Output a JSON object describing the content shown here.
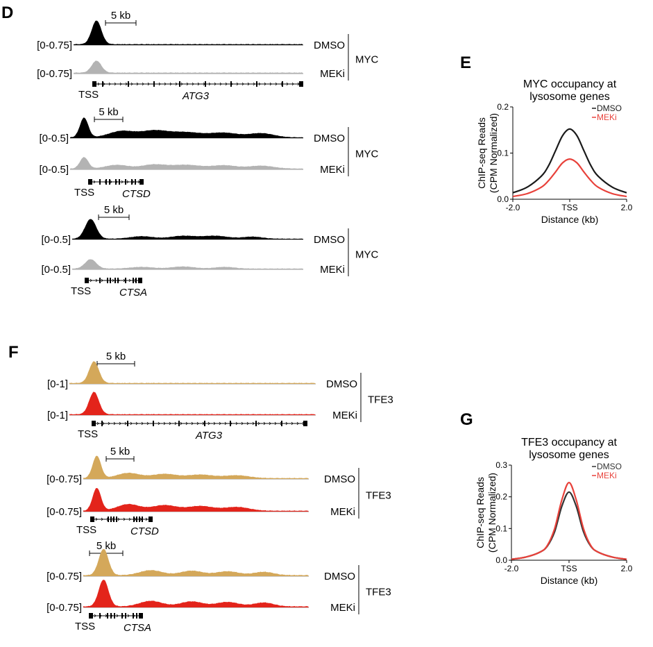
{
  "panels": {
    "D": {
      "letter": "D",
      "factor": "MYC",
      "color_dmso": "#000000",
      "color_meki": "#b3b3b3",
      "groups": [
        {
          "gene": "ATG3",
          "range": "[0-0.75]",
          "scale": "5 kb",
          "cond_top": "DMSO",
          "cond_bottom": "MEKi",
          "tss": "TSS",
          "factor": "MYC",
          "dmso_peaks": [
            [
              0.1,
              0.95,
              7
            ]
          ],
          "meki_peaks": [
            [
              0.1,
              0.48,
              7
            ]
          ]
        },
        {
          "gene": "CTSD",
          "range": "[0-0.5]",
          "scale": "5 kb",
          "cond_top": "DMSO",
          "cond_bottom": "MEKi",
          "tss": "TSS",
          "factor": "MYC",
          "dmso_peaks": [
            [
              0.06,
              0.95,
              6
            ],
            [
              0.22,
              0.3,
              18
            ],
            [
              0.36,
              0.32,
              20
            ],
            [
              0.5,
              0.24,
              22
            ],
            [
              0.66,
              0.22,
              20
            ],
            [
              0.82,
              0.2,
              18
            ]
          ],
          "meki_peaks": [
            [
              0.06,
              0.55,
              6
            ],
            [
              0.2,
              0.18,
              16
            ],
            [
              0.36,
              0.2,
              18
            ],
            [
              0.5,
              0.18,
              20
            ],
            [
              0.66,
              0.16,
              18
            ],
            [
              0.82,
              0.14,
              18
            ]
          ]
        },
        {
          "gene": "CTSA",
          "range": "[0-0.5]",
          "scale": "5 kb",
          "cond_top": "DMSO",
          "cond_bottom": "MEKi",
          "tss": "TSS",
          "factor": "MYC",
          "dmso_peaks": [
            [
              0.08,
              0.95,
              8
            ],
            [
              0.3,
              0.12,
              16
            ],
            [
              0.48,
              0.14,
              18
            ],
            [
              0.62,
              0.14,
              18
            ],
            [
              0.78,
              0.1,
              14
            ]
          ],
          "meki_peaks": [
            [
              0.08,
              0.45,
              8
            ],
            [
              0.3,
              0.08,
              16
            ],
            [
              0.48,
              0.1,
              16
            ],
            [
              0.66,
              0.08,
              14
            ]
          ]
        }
      ]
    },
    "F": {
      "letter": "F",
      "factor": "TFE3",
      "color_dmso": "#d4a85a",
      "color_meki": "#e3241b",
      "groups": [
        {
          "gene": "ATG3",
          "range": "[0-1]",
          "scale": "5 kb",
          "cond_top": "DMSO",
          "cond_bottom": "MEKi",
          "tss": "TSS",
          "factor": "TFE3",
          "dmso_peaks": [
            [
              0.1,
              0.92,
              7
            ]
          ],
          "meki_peaks": [
            [
              0.1,
              0.95,
              7
            ]
          ]
        },
        {
          "gene": "CTSD",
          "range": "[0-0.75]",
          "scale": "5 kb",
          "cond_top": "DMSO",
          "cond_bottom": "MEKi",
          "tss": "TSS",
          "factor": "TFE3",
          "dmso_peaks": [
            [
              0.06,
              0.95,
              6
            ],
            [
              0.2,
              0.22,
              16
            ],
            [
              0.36,
              0.18,
              18
            ],
            [
              0.52,
              0.15,
              18
            ],
            [
              0.68,
              0.12,
              18
            ]
          ],
          "meki_peaks": [
            [
              0.06,
              0.97,
              6
            ],
            [
              0.2,
              0.28,
              16
            ],
            [
              0.36,
              0.24,
              18
            ],
            [
              0.52,
              0.2,
              18
            ],
            [
              0.68,
              0.16,
              18
            ]
          ]
        },
        {
          "gene": "CTSA",
          "range": "[0-0.75]",
          "scale": "5 kb",
          "cond_top": "DMSO",
          "cond_bottom": "MEKi",
          "tss": "TSS",
          "factor": "TFE3",
          "dmso_peaks": [
            [
              0.09,
              0.95,
              7
            ],
            [
              0.3,
              0.18,
              16
            ],
            [
              0.48,
              0.16,
              16
            ],
            [
              0.64,
              0.14,
              16
            ],
            [
              0.8,
              0.12,
              14
            ]
          ],
          "meki_peaks": [
            [
              0.09,
              0.97,
              7
            ],
            [
              0.3,
              0.2,
              16
            ],
            [
              0.48,
              0.18,
              16
            ],
            [
              0.64,
              0.16,
              16
            ],
            [
              0.8,
              0.14,
              14
            ]
          ]
        }
      ]
    },
    "E": {
      "letter": "E"
    },
    "G": {
      "letter": "G"
    }
  },
  "chart_data": [
    {
      "type": "line",
      "panel": "E",
      "title": "MYC occupancy at lysosome genes",
      "title_lines": [
        "MYC occupancy at",
        "lysosome genes"
      ],
      "xlabel": "Distance (kb)",
      "ylabel": "ChIP-seq Reads (CPM Normalized)",
      "ylabel_lines": [
        "ChIP-seq Reads",
        "(CPM Normalized)"
      ],
      "x": [
        -2.0,
        -1.5,
        -1.0,
        -0.75,
        -0.5,
        -0.25,
        0.0,
        0.25,
        0.5,
        0.75,
        1.0,
        1.5,
        2.0
      ],
      "xlim": [
        -2.0,
        2.0
      ],
      "ylim": [
        0,
        0.2
      ],
      "x_ticks": [
        {
          "v": -2.0,
          "label": "-2.0"
        },
        {
          "v": 0.0,
          "label": "TSS"
        },
        {
          "v": 2.0,
          "label": "2.0"
        }
      ],
      "y_ticks": [
        {
          "v": 0.0,
          "label": "0.0"
        },
        {
          "v": 0.1,
          "label": "0.1"
        },
        {
          "v": 0.2,
          "label": "0.2"
        }
      ],
      "legend_position": "top-right",
      "series": [
        {
          "name": "DMSO",
          "color": "#1a1a1a",
          "values": [
            0.014,
            0.026,
            0.05,
            0.072,
            0.105,
            0.138,
            0.152,
            0.138,
            0.105,
            0.072,
            0.05,
            0.026,
            0.014
          ]
        },
        {
          "name": "MEKi",
          "color": "#e8413a",
          "values": [
            0.006,
            0.012,
            0.026,
            0.04,
            0.059,
            0.079,
            0.087,
            0.079,
            0.059,
            0.04,
            0.026,
            0.012,
            0.006
          ]
        }
      ]
    },
    {
      "type": "line",
      "panel": "G",
      "title": "TFE3 occupancy at lysosome genes",
      "title_lines": [
        "TFE3 occupancy at",
        "lysosome genes"
      ],
      "xlabel": "Distance (kb)",
      "ylabel": "ChIP-seq Reads (CPM Normalized)",
      "ylabel_lines": [
        "ChIP-seq Reads",
        "(CPM Normalized)"
      ],
      "x": [
        -2.0,
        -1.5,
        -1.0,
        -0.75,
        -0.5,
        -0.25,
        0.0,
        0.25,
        0.5,
        0.75,
        1.0,
        1.5,
        2.0
      ],
      "xlim": [
        -2.0,
        2.0
      ],
      "ylim": [
        0,
        0.3
      ],
      "x_ticks": [
        {
          "v": -2.0,
          "label": "-2.0"
        },
        {
          "v": 0.0,
          "label": "TSS"
        },
        {
          "v": 2.0,
          "label": "2.0"
        }
      ],
      "y_ticks": [
        {
          "v": 0.0,
          "label": "0.0"
        },
        {
          "v": 0.1,
          "label": "0.1"
        },
        {
          "v": 0.2,
          "label": "0.2"
        },
        {
          "v": 0.3,
          "label": "0.3"
        }
      ],
      "legend_position": "top-right",
      "series": [
        {
          "name": "DMSO",
          "color": "#333333",
          "values": [
            0.003,
            0.01,
            0.026,
            0.045,
            0.09,
            0.17,
            0.215,
            0.17,
            0.09,
            0.045,
            0.026,
            0.01,
            0.003
          ]
        },
        {
          "name": "MEKi",
          "color": "#e8413a",
          "values": [
            0.003,
            0.01,
            0.026,
            0.047,
            0.1,
            0.19,
            0.245,
            0.19,
            0.1,
            0.047,
            0.026,
            0.01,
            0.003
          ]
        }
      ]
    }
  ]
}
